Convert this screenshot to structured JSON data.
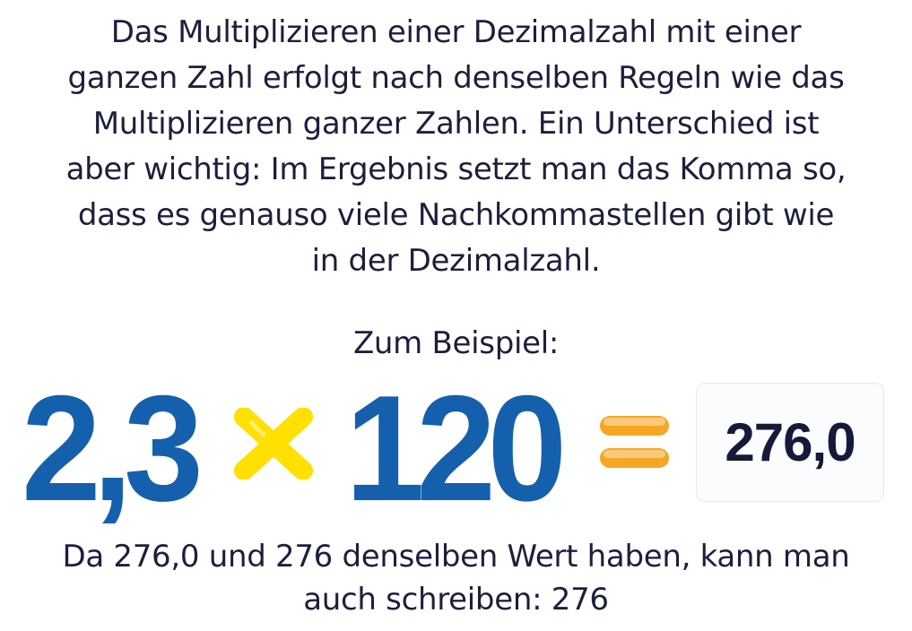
{
  "intro_lines": [
    "Das Multiplizieren einer Dezimalzahl mit einer",
    "ganzen Zahl erfolgt nach denselben Regeln wie das",
    "Multiplizieren ganzer Zahlen. Ein Unterschied ist",
    "aber wichtig: Im Ergebnis setzt man das Komma so,",
    "dass es genauso viele Nachkommastellen gibt wie",
    "in der Dezimalzahl."
  ],
  "example_label": "Zum Beispiel:",
  "equation": {
    "factor1": "2,3",
    "operator_icon": "multiply-icon",
    "factor2": "120",
    "equals_icon": "equals-icon",
    "result": "276,0",
    "colors": {
      "numbers": "#1560ac",
      "times": "#ffe000",
      "equals": "#f5a623",
      "result": "#161a3a"
    }
  },
  "outro_lines": [
    "Da 276,0 und 276 denselben Wert haben, kann man",
    "auch schreiben: 276"
  ]
}
